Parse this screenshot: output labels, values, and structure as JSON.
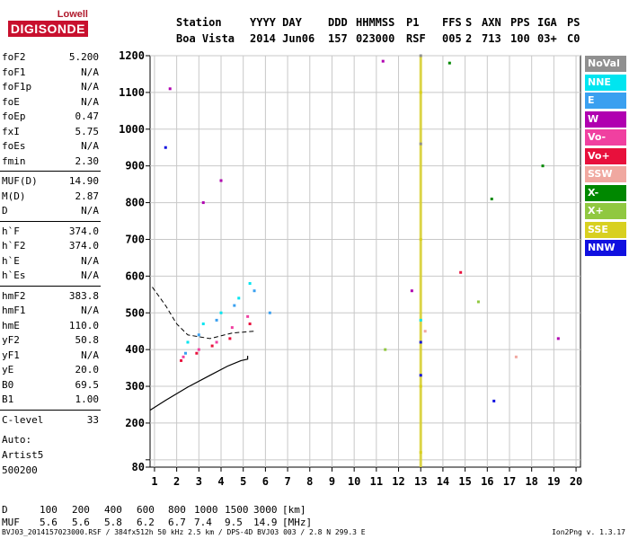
{
  "logo": {
    "top": "Lowell",
    "main": "DIGISONDE"
  },
  "header": {
    "labels": [
      "Station",
      "YYYY DAY",
      "DDD",
      "HHMMSS",
      "P1",
      "FFS",
      "S",
      "AXN",
      "PPS",
      "IGA",
      "PS"
    ],
    "values": [
      "Boa Vista",
      "2014 Jun06",
      "157",
      "023000",
      "RSF",
      "005",
      "2",
      "713",
      "100",
      "03+",
      "C0"
    ]
  },
  "params": [
    {
      "k": "foF2",
      "v": "5.200"
    },
    {
      "k": "foF1",
      "v": "N/A"
    },
    {
      "k": "foF1p",
      "v": "N/A"
    },
    {
      "k": "foE",
      "v": "N/A"
    },
    {
      "k": "foEp",
      "v": "0.47"
    },
    {
      "k": "fxI",
      "v": "5.75"
    },
    {
      "k": "foEs",
      "v": "N/A"
    },
    {
      "k": "fmin",
      "v": "2.30"
    },
    {
      "k": "MUF(D)",
      "v": "14.90"
    },
    {
      "k": "M(D)",
      "v": "2.87"
    },
    {
      "k": "D",
      "v": "N/A"
    },
    {
      "k": "h`F",
      "v": "374.0"
    },
    {
      "k": "h`F2",
      "v": "374.0"
    },
    {
      "k": "h`E",
      "v": "N/A"
    },
    {
      "k": "h`Es",
      "v": "N/A"
    },
    {
      "k": "hmF2",
      "v": "383.8"
    },
    {
      "k": "hmF1",
      "v": "N/A"
    },
    {
      "k": "hmE",
      "v": "110.0"
    },
    {
      "k": "yF2",
      "v": "50.8"
    },
    {
      "k": "yF1",
      "v": "N/A"
    },
    {
      "k": "yE",
      "v": "20.0"
    },
    {
      "k": "B0",
      "v": "69.5"
    },
    {
      "k": "B1",
      "v": "1.00"
    },
    {
      "k": "C-level",
      "v": "33"
    }
  ],
  "auto": [
    "Auto:",
    "Artist5",
    "500200"
  ],
  "legend": [
    {
      "label": "NoVal",
      "color": "#909090"
    },
    {
      "label": "NNE",
      "color": "#00e5f0"
    },
    {
      "label": "E",
      "color": "#3aa0f0"
    },
    {
      "label": "W",
      "color": "#b000b0"
    },
    {
      "label": "Vo-",
      "color": "#f040a0"
    },
    {
      "label": "Vo+",
      "color": "#e8103c"
    },
    {
      "label": "SSW",
      "color": "#f0a8a0"
    },
    {
      "label": "X-",
      "color": "#008800"
    },
    {
      "label": "X+",
      "color": "#90c840"
    },
    {
      "label": "SSE",
      "color": "#d8d020"
    },
    {
      "label": "NNW",
      "color": "#1010e0"
    }
  ],
  "mufTable": {
    "row1": {
      "label": "D",
      "values": [
        "100",
        "200",
        "400",
        "600",
        "800",
        "1000",
        "1500",
        "3000"
      ],
      "unit": "[km]"
    },
    "row2": {
      "label": "MUF",
      "values": [
        "5.6",
        "5.6",
        "5.8",
        "6.2",
        "6.7",
        "7.4",
        "9.5",
        "14.9"
      ],
      "unit": "[MHz]"
    }
  },
  "footer": {
    "left": "BVJ03_2014157023000.RSF / 384fx512h 50 kHz 2.5 km / DPS-4D BVJ03 003 / 2.8 N 299.3 E",
    "right": "Ion2Png v. 1.3.17"
  },
  "chart_data": {
    "type": "scatter",
    "xlabel": "",
    "ylabel": "",
    "xlim": [
      0.8,
      20.2
    ],
    "ylim": [
      80,
      1200
    ],
    "xticks": [
      1,
      2,
      3,
      4,
      5,
      6,
      7,
      8,
      9,
      10,
      11,
      12,
      13,
      14,
      15,
      16,
      17,
      18,
      19,
      20
    ],
    "yticks": [
      80,
      100,
      200,
      300,
      400,
      500,
      600,
      700,
      800,
      900,
      1000,
      1100,
      1200
    ],
    "ytick_labels": [
      "80",
      "",
      "200",
      "300",
      "400",
      "500",
      "600",
      "700",
      "800",
      "900",
      "1000",
      "1100",
      "1200"
    ],
    "grid": true,
    "series": [
      {
        "name": "NoVal",
        "points": [
          [
            13.0,
            1200
          ],
          [
            13.0,
            960
          ]
        ]
      },
      {
        "name": "NNE",
        "points": [
          [
            2.5,
            420
          ],
          [
            3.2,
            470
          ],
          [
            4.0,
            500
          ],
          [
            4.8,
            540
          ],
          [
            5.3,
            580
          ],
          [
            13.0,
            480
          ]
        ]
      },
      {
        "name": "E",
        "points": [
          [
            2.4,
            390
          ],
          [
            3.0,
            440
          ],
          [
            3.8,
            480
          ],
          [
            4.6,
            520
          ],
          [
            5.5,
            560
          ],
          [
            6.2,
            500
          ]
        ]
      },
      {
        "name": "W",
        "points": [
          [
            1.7,
            1110
          ],
          [
            3.2,
            800
          ],
          [
            4.0,
            860
          ],
          [
            11.3,
            1185
          ],
          [
            12.6,
            560
          ],
          [
            19.2,
            430
          ]
        ]
      },
      {
        "name": "Vo-",
        "points": [
          [
            2.3,
            380
          ],
          [
            3.0,
            400
          ],
          [
            3.8,
            420
          ],
          [
            4.5,
            460
          ],
          [
            5.2,
            490
          ]
        ]
      },
      {
        "name": "Vo+",
        "points": [
          [
            2.2,
            370
          ],
          [
            2.9,
            390
          ],
          [
            3.6,
            410
          ],
          [
            4.4,
            430
          ],
          [
            5.3,
            470
          ],
          [
            14.8,
            610
          ]
        ]
      },
      {
        "name": "SSW",
        "points": [
          [
            13.2,
            450
          ],
          [
            17.3,
            380
          ]
        ]
      },
      {
        "name": "X-",
        "points": [
          [
            14.3,
            1180
          ],
          [
            16.2,
            810
          ],
          [
            18.5,
            900
          ]
        ]
      },
      {
        "name": "X+",
        "points": [
          [
            11.4,
            400
          ],
          [
            15.6,
            530
          ]
        ]
      },
      {
        "name": "SSE",
        "points": [
          [
            13.0,
            1100
          ],
          [
            13.0,
            700
          ],
          [
            13.0,
            300
          ],
          [
            13.0,
            120
          ]
        ]
      },
      {
        "name": "NNW",
        "points": [
          [
            1.5,
            950
          ],
          [
            13.0,
            420
          ],
          [
            13.0,
            330
          ],
          [
            16.3,
            260
          ]
        ]
      }
    ],
    "profile_curve": [
      [
        0.8,
        235
      ],
      [
        1.5,
        262
      ],
      [
        2.5,
        298
      ],
      [
        3.5,
        330
      ],
      [
        4.3,
        355
      ],
      [
        4.9,
        370
      ],
      [
        5.2,
        374
      ],
      [
        5.2,
        383
      ]
    ],
    "muf_curve": [
      [
        0.9,
        570
      ],
      [
        1.5,
        520
      ],
      [
        2.0,
        470
      ],
      [
        2.5,
        440
      ],
      [
        3.5,
        430
      ],
      [
        4.5,
        445
      ],
      [
        5.5,
        450
      ]
    ]
  }
}
